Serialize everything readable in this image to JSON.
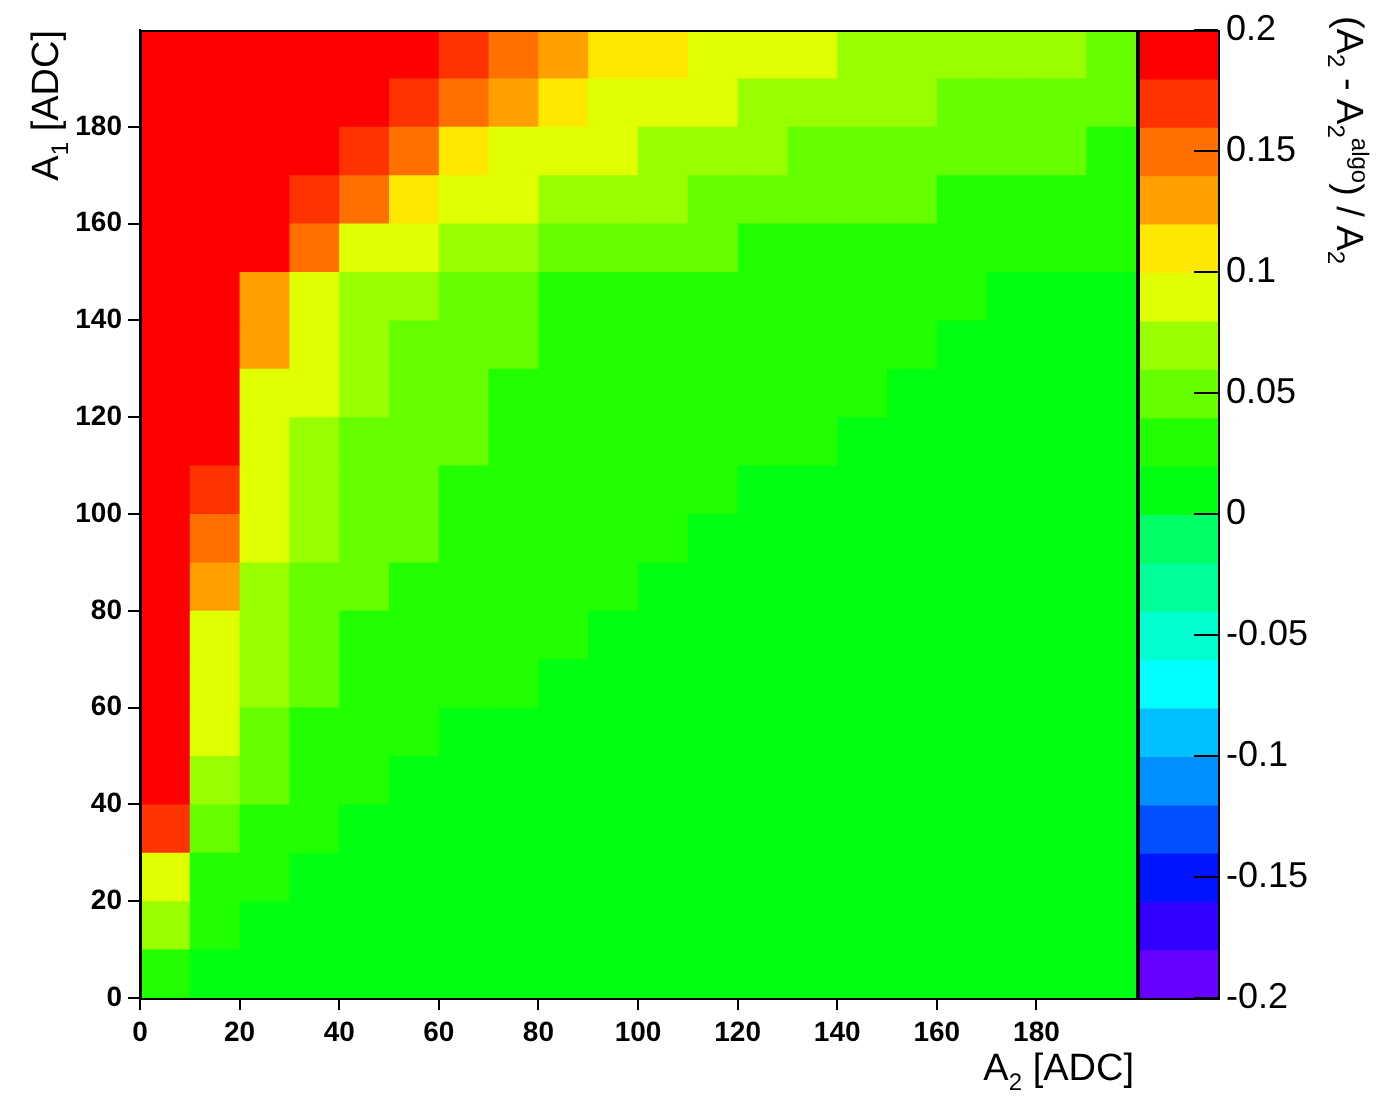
{
  "chart_data": {
    "type": "heatmap",
    "xlabel": "A$_{2}$ [ADC]",
    "ylabel": "A$_{1}$ [ADC]",
    "clabel": "(A$_{2}$ - A$_{2}$$^{algo}$) / A$_{2}$",
    "xlim": [
      0,
      200
    ],
    "xticks": [
      0,
      20,
      40,
      60,
      80,
      100,
      120,
      140,
      160,
      180
    ],
    "ylim": [
      0,
      200
    ],
    "yticks": [
      0,
      20,
      40,
      60,
      80,
      100,
      120,
      140,
      160,
      180
    ],
    "clim": [
      -0.2,
      0.2
    ],
    "cticks": [
      -0.2,
      -0.15,
      -0.1,
      -0.05,
      0,
      0.05,
      0.1,
      0.15,
      0.2
    ],
    "cells": [
      [
        0.19,
        0.19,
        0.19,
        0.19,
        0.19,
        0.19,
        0.17,
        0.15,
        0.13,
        0.11,
        0.11,
        0.09,
        0.09,
        0.09,
        0.07,
        0.07,
        0.07,
        0.07,
        0.07,
        0.05
      ],
      [
        0.19,
        0.19,
        0.19,
        0.19,
        0.19,
        0.17,
        0.15,
        0.13,
        0.11,
        0.09,
        0.09,
        0.09,
        0.07,
        0.07,
        0.07,
        0.07,
        0.05,
        0.05,
        0.05,
        0.05
      ],
      [
        0.19,
        0.19,
        0.19,
        0.19,
        0.17,
        0.15,
        0.11,
        0.09,
        0.09,
        0.09,
        0.07,
        0.07,
        0.07,
        0.05,
        0.05,
        0.05,
        0.05,
        0.05,
        0.05,
        0.03
      ],
      [
        0.19,
        0.19,
        0.19,
        0.17,
        0.15,
        0.11,
        0.09,
        0.09,
        0.07,
        0.07,
        0.07,
        0.05,
        0.05,
        0.05,
        0.05,
        0.05,
        0.03,
        0.03,
        0.03,
        0.03
      ],
      [
        0.19,
        0.19,
        0.19,
        0.15,
        0.09,
        0.09,
        0.07,
        0.07,
        0.05,
        0.05,
        0.05,
        0.05,
        0.03,
        0.03,
        0.03,
        0.03,
        0.03,
        0.03,
        0.03,
        0.03
      ],
      [
        0.19,
        0.19,
        0.13,
        0.09,
        0.07,
        0.07,
        0.05,
        0.05,
        0.03,
        0.03,
        0.03,
        0.03,
        0.03,
        0.03,
        0.03,
        0.03,
        0.03,
        0.01,
        0.01,
        0.01
      ],
      [
        0.19,
        0.19,
        0.13,
        0.09,
        0.07,
        0.05,
        0.05,
        0.05,
        0.03,
        0.03,
        0.03,
        0.03,
        0.03,
        0.03,
        0.03,
        0.03,
        0.01,
        0.01,
        0.01,
        0.01
      ],
      [
        0.19,
        0.19,
        0.09,
        0.09,
        0.07,
        0.05,
        0.05,
        0.03,
        0.03,
        0.03,
        0.03,
        0.03,
        0.03,
        0.03,
        0.03,
        0.01,
        0.01,
        0.01,
        0.01,
        0.01
      ],
      [
        0.19,
        0.19,
        0.09,
        0.07,
        0.05,
        0.05,
        0.05,
        0.03,
        0.03,
        0.03,
        0.03,
        0.03,
        0.03,
        0.03,
        0.01,
        0.01,
        0.01,
        0.01,
        0.01,
        0.01
      ],
      [
        0.19,
        0.17,
        0.09,
        0.07,
        0.05,
        0.05,
        0.03,
        0.03,
        0.03,
        0.03,
        0.03,
        0.03,
        0.01,
        0.01,
        0.01,
        0.01,
        0.01,
        0.01,
        0.01,
        0.01
      ],
      [
        0.19,
        0.15,
        0.09,
        0.07,
        0.05,
        0.05,
        0.03,
        0.03,
        0.03,
        0.03,
        0.03,
        0.01,
        0.01,
        0.01,
        0.01,
        0.01,
        0.01,
        0.01,
        0.01,
        0.01
      ],
      [
        0.19,
        0.13,
        0.07,
        0.05,
        0.05,
        0.03,
        0.03,
        0.03,
        0.03,
        0.03,
        0.01,
        0.01,
        0.01,
        0.01,
        0.01,
        0.01,
        0.01,
        0.01,
        0.01,
        0.01
      ],
      [
        0.19,
        0.09,
        0.07,
        0.05,
        0.03,
        0.03,
        0.03,
        0.03,
        0.03,
        0.01,
        0.01,
        0.01,
        0.01,
        0.01,
        0.01,
        0.01,
        0.01,
        0.01,
        0.01,
        0.01
      ],
      [
        0.19,
        0.09,
        0.07,
        0.05,
        0.03,
        0.03,
        0.03,
        0.03,
        0.01,
        0.01,
        0.01,
        0.01,
        0.01,
        0.01,
        0.01,
        0.01,
        0.01,
        0.01,
        0.01,
        0.01
      ],
      [
        0.19,
        0.09,
        0.05,
        0.03,
        0.03,
        0.03,
        0.01,
        0.01,
        0.01,
        0.01,
        0.01,
        0.01,
        0.01,
        0.01,
        0.01,
        0.01,
        0.01,
        0.01,
        0.01,
        0.01
      ],
      [
        0.19,
        0.07,
        0.05,
        0.03,
        0.03,
        0.01,
        0.01,
        0.01,
        0.01,
        0.01,
        0.01,
        0.01,
        0.01,
        0.01,
        0.01,
        0.01,
        0.01,
        0.01,
        0.01,
        0.01
      ],
      [
        0.17,
        0.05,
        0.03,
        0.03,
        0.01,
        0.01,
        0.01,
        0.01,
        0.01,
        0.01,
        0.01,
        0.01,
        0.01,
        0.01,
        0.01,
        0.01,
        0.01,
        0.01,
        0.01,
        0.01
      ],
      [
        0.09,
        0.03,
        0.03,
        0.01,
        0.01,
        0.01,
        0.01,
        0.01,
        0.01,
        0.01,
        0.01,
        0.01,
        0.01,
        0.01,
        0.01,
        0.01,
        0.01,
        0.01,
        0.01,
        0.01
      ],
      [
        0.07,
        0.03,
        0.01,
        0.01,
        0.01,
        0.01,
        0.01,
        0.01,
        0.01,
        0.01,
        0.01,
        0.01,
        0.01,
        0.01,
        0.01,
        0.01,
        0.01,
        0.01,
        0.01,
        0.01
      ],
      [
        0.03,
        0.01,
        0.01,
        0.01,
        0.01,
        0.01,
        0.01,
        0.01,
        0.01,
        0.01,
        0.01,
        0.01,
        0.01,
        0.01,
        0.01,
        0.01,
        0.01,
        0.01,
        0.01,
        0.01
      ]
    ]
  }
}
